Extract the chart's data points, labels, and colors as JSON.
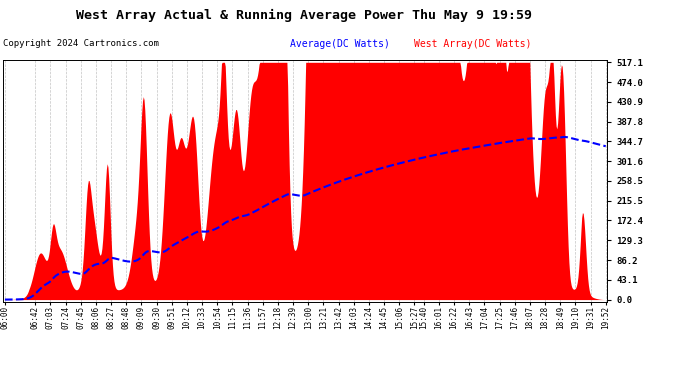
{
  "title": "West Array Actual & Running Average Power Thu May 9 19:59",
  "copyright": "Copyright 2024 Cartronics.com",
  "legend_avg": "Average(DC Watts)",
  "legend_west": "West Array(DC Watts)",
  "ylabel_right_ticks": [
    0.0,
    43.1,
    86.2,
    129.3,
    172.4,
    215.5,
    258.5,
    301.6,
    344.7,
    387.8,
    430.9,
    474.0,
    517.1
  ],
  "ymax": 517.1,
  "ymin": 0.0,
  "bg_color": "#ffffff",
  "plot_bg_color": "#ffffff",
  "bar_color": "#ff0000",
  "avg_line_color": "#0000ff",
  "title_color": "#000000",
  "copyright_color": "#000000",
  "legend_avg_color": "#0000ff",
  "legend_west_color": "#ff0000",
  "grid_color": "#aaaaaa",
  "x_tick_labels": [
    "06:00",
    "06:42",
    "07:03",
    "07:24",
    "07:45",
    "08:06",
    "08:27",
    "08:48",
    "09:09",
    "09:30",
    "09:51",
    "10:12",
    "10:33",
    "10:54",
    "11:15",
    "11:36",
    "11:57",
    "12:18",
    "12:39",
    "13:00",
    "13:21",
    "13:42",
    "14:03",
    "14:24",
    "14:45",
    "15:06",
    "15:27",
    "15:40",
    "16:01",
    "16:22",
    "16:43",
    "17:04",
    "17:25",
    "17:46",
    "18:07",
    "18:28",
    "18:49",
    "19:10",
    "19:31",
    "19:52"
  ]
}
